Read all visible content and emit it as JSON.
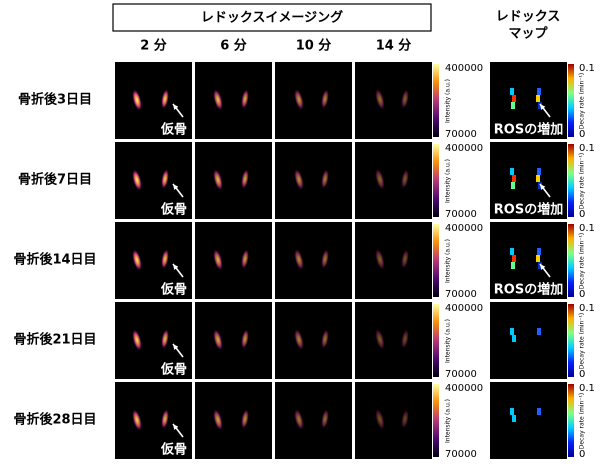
{
  "header": {
    "title": "レドックスイメージング",
    "map_title": [
      "レドックス",
      "マップ"
    ]
  },
  "columns": [
    "2 分",
    "6 分",
    "10 分",
    "14 分"
  ],
  "rows": [
    {
      "label": "骨折後3日目",
      "ros_increase": true
    },
    {
      "label": "骨折後7日目",
      "ros_increase": true
    },
    {
      "label": "骨折後14日目",
      "ros_increase": true
    },
    {
      "label": "骨折後21日目",
      "ros_increase": false
    },
    {
      "label": "骨折後28日目",
      "ros_increase": false
    }
  ],
  "annotations": {
    "callus": "仮骨",
    "ros": "ROSの増加"
  },
  "intensity_colorbar": {
    "max": 400000,
    "min": 70000,
    "label": "Intensity (a.u.)"
  },
  "decay_colorbar": {
    "max": 0.1,
    "min": 0,
    "label": "Decay rate (min⁻¹)"
  }
}
